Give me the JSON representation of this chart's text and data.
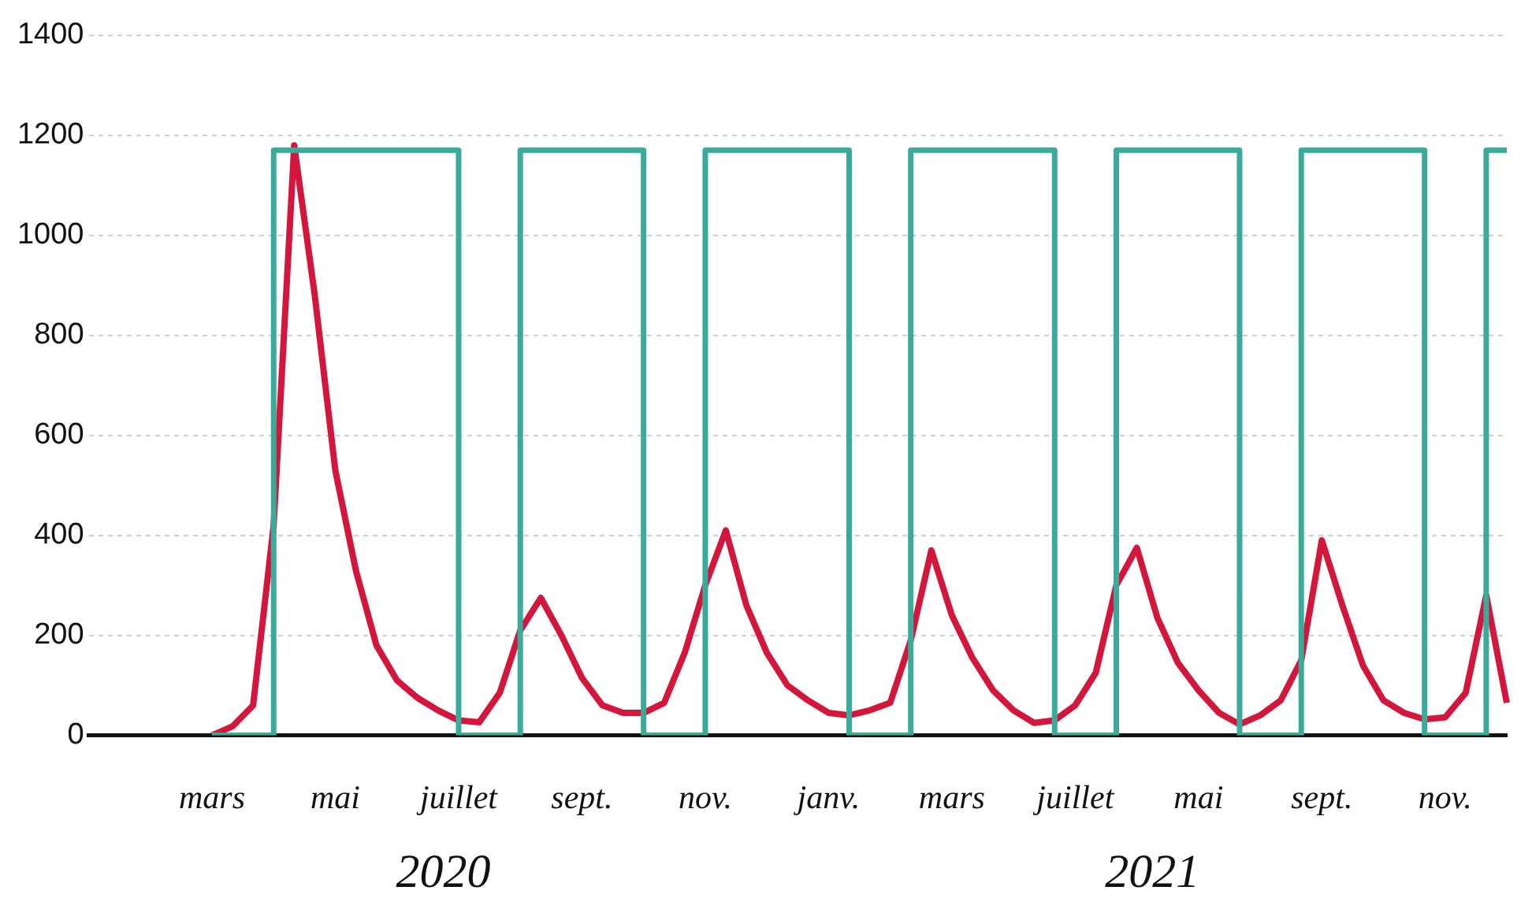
{
  "chart_data": {
    "type": "line",
    "categories": [
      null,
      null,
      null,
      null,
      null,
      null,
      "mars",
      null,
      null,
      null,
      null,
      null,
      "mai",
      null,
      null,
      null,
      null,
      null,
      "juillet",
      null,
      null,
      null,
      null,
      null,
      "sept.",
      null,
      null,
      null,
      null,
      null,
      "nov.",
      null,
      null,
      null,
      null,
      null,
      "janv.",
      null,
      null,
      null,
      null,
      null,
      "mars",
      null,
      null,
      null,
      null,
      null,
      "juillet",
      null,
      null,
      null,
      null,
      null,
      "mai",
      null,
      null,
      null,
      null,
      null,
      "sept.",
      null,
      null,
      null,
      null,
      null,
      "nov.",
      null,
      null,
      null
    ],
    "series": [
      {
        "type": "step",
        "color": "#3aaa9a",
        "values": [
          null,
          null,
          null,
          null,
          null,
          null,
          0,
          0,
          0,
          1170,
          1170,
          1170,
          1170,
          1170,
          1170,
          1170,
          1170,
          1170,
          0,
          0,
          0,
          1170,
          1170,
          1170,
          1170,
          1170,
          1170,
          0,
          0,
          0,
          1170,
          1170,
          1170,
          1170,
          1170,
          1170,
          1170,
          0,
          0,
          0,
          1170,
          1170,
          1170,
          1170,
          1170,
          1170,
          1170,
          0,
          0,
          0,
          1170,
          1170,
          1170,
          1170,
          1170,
          1170,
          0,
          0,
          0,
          1170,
          1170,
          1170,
          1170,
          1170,
          1170,
          0,
          0,
          0,
          1170,
          1170
        ]
      },
      {
        "color": "#d4163c",
        "values": [
          null,
          null,
          null,
          null,
          null,
          null,
          0,
          18,
          60,
          420,
          1180,
          880,
          530,
          330,
          180,
          110,
          75,
          50,
          30,
          26,
          85,
          210,
          275,
          200,
          115,
          60,
          45,
          45,
          65,
          165,
          300,
          410,
          260,
          165,
          100,
          70,
          45,
          40,
          50,
          65,
          190,
          370,
          240,
          155,
          90,
          50,
          25,
          30,
          60,
          125,
          300,
          375,
          235,
          145,
          90,
          45,
          22,
          40,
          70,
          150,
          390,
          260,
          140,
          70,
          45,
          32,
          36,
          85,
          280,
          65
        ]
      }
    ],
    "ylim": [
      0,
      1400
    ],
    "yticks": [
      0,
      200,
      400,
      600,
      800,
      1000,
      1200,
      1400
    ],
    "grid": "y",
    "legend": false,
    "marker": "none",
    "line_style": "solid",
    "annotations": [
      "2020",
      "2021"
    ]
  }
}
